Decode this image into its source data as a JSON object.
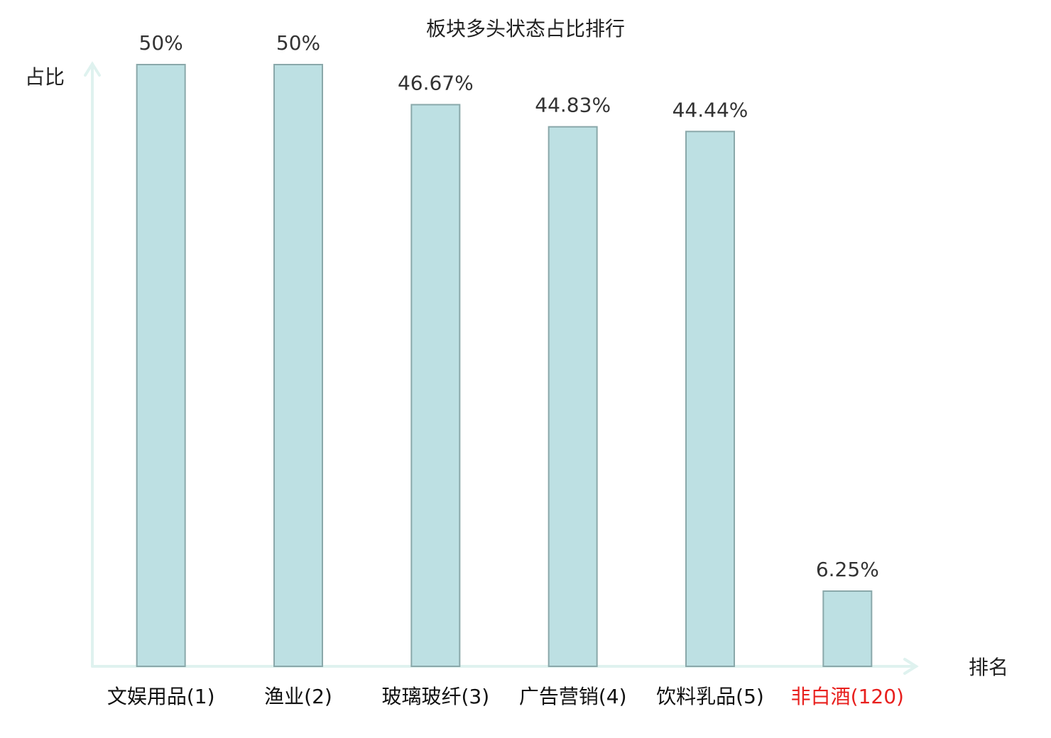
{
  "chart_data": {
    "type": "bar",
    "title": "板块多头状态占比排行",
    "y_label": "占比",
    "x_label": "排名",
    "categories": [
      "文娱用品(1)",
      "渔业(2)",
      "玻璃玻纤(3)",
      "广告营销(4)",
      "饮料乳品(5)",
      "非白酒(120)"
    ],
    "category_label_colors": [
      "#111111",
      "#111111",
      "#111111",
      "#111111",
      "#111111",
      "#e8201e"
    ],
    "values": [
      50,
      50,
      46.67,
      44.83,
      44.44,
      6.25
    ],
    "value_labels": [
      "50%",
      "50%",
      "46.67%",
      "44.83%",
      "44.44%",
      "6.25%"
    ],
    "color": "#bde0e3",
    "edge_color": "#8aa8aa",
    "axis_color": "#dff2ef",
    "ylim": [
      0,
      50
    ]
  }
}
